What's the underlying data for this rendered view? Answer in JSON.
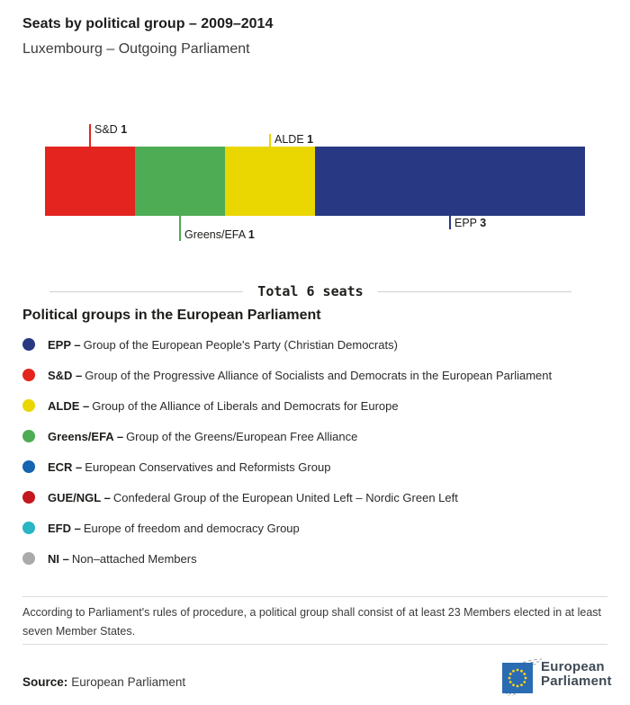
{
  "header": {
    "title": "Seats by political group – 2009–2014",
    "subtitle": "Luxembourg – Outgoing Parliament"
  },
  "chart_data": {
    "type": "bar",
    "variant": "horizontal-stacked-seat-bar",
    "title": "Seats by political group – 2009–2014",
    "subtitle": "Luxembourg – Outgoing Parliament",
    "total_seats": 6,
    "total_label": "Total 6 seats",
    "segments": [
      {
        "group": "S&D",
        "seats": 1,
        "color": "#e3241f",
        "callout_side": "above",
        "tick_len": 25
      },
      {
        "group": "Greens/EFA",
        "seats": 1,
        "color": "#4dac54",
        "callout_side": "below",
        "tick_len": 28
      },
      {
        "group": "ALDE",
        "seats": 1,
        "color": "#ead600",
        "callout_side": "above",
        "tick_len": 14
      },
      {
        "group": "EPP",
        "seats": 3,
        "color": "#293883",
        "callout_side": "below",
        "tick_len": 15
      }
    ]
  },
  "legend": {
    "heading": "Political groups in the European Parliament",
    "items": [
      {
        "abbr": "EPP –",
        "desc": "Group of the European People's Party (Christian Democrats)",
        "color": "#293883"
      },
      {
        "abbr": "S&D –",
        "desc": "Group of the Progressive Alliance of Socialists and Democrats in the European Parliament",
        "color": "#e3241f"
      },
      {
        "abbr": "ALDE –",
        "desc": "Group of the Alliance of Liberals and Democrats for Europe",
        "color": "#ead600"
      },
      {
        "abbr": "Greens/EFA –",
        "desc": "Group of the Greens/European Free Alliance",
        "color": "#4dac54"
      },
      {
        "abbr": "ECR –",
        "desc": "European Conservatives and Reformists Group",
        "color": "#1563b1"
      },
      {
        "abbr": "GUE/NGL –",
        "desc": "Confederal Group of the European United Left – Nordic Green Left",
        "color": "#c4181e"
      },
      {
        "abbr": "EFD –",
        "desc": "Europe of freedom and democracy Group",
        "color": "#29b5c4"
      },
      {
        "abbr": "NI –",
        "desc": "Non–attached Members",
        "color": "#aaaaaa"
      }
    ]
  },
  "footnote_lines": [
    "According to Parliament's rules of procedure, a political group shall consist of at least 23 Members elected in at least",
    "seven Member States."
  ],
  "source": {
    "label": "Source:",
    "text": "European Parliament"
  },
  "logo": {
    "line1": "European",
    "line2": "Parliament",
    "flag_color": "#2a6bb2",
    "star_color": "#ffd617",
    "arc_color": "#9aa4aa",
    "text_color": "#3e4a55"
  }
}
